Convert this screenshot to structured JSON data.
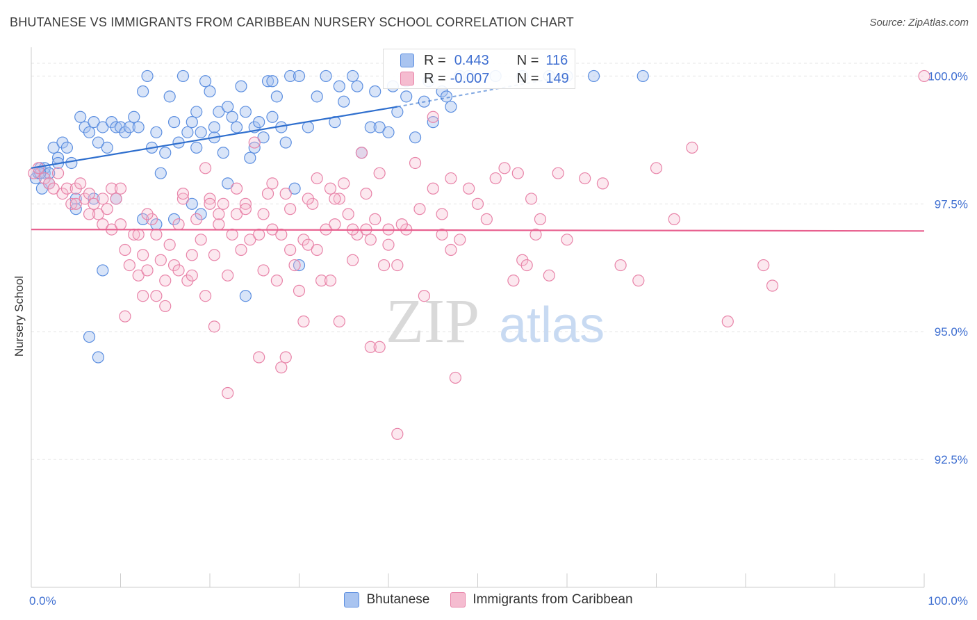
{
  "header": {
    "title": "BHUTANESE VS IMMIGRANTS FROM CARIBBEAN NURSERY SCHOOL CORRELATION CHART",
    "source": "Source: ZipAtlas.com"
  },
  "watermark": {
    "zip": "ZIP",
    "atlas": "atlas"
  },
  "stats": [
    {
      "r_label": "R =",
      "r_value": "0.443",
      "n_label": "N =",
      "n_value": "116"
    },
    {
      "r_label": "R =",
      "r_value": "-0.007",
      "n_label": "N =",
      "n_value": "149"
    }
  ],
  "legend": [
    {
      "label": "Bhutanese"
    },
    {
      "label": "Immigrants from Caribbean"
    }
  ],
  "chart_data": {
    "type": "scatter",
    "title": "BHUTANESE VS IMMIGRANTS FROM CARIBBEAN NURSERY SCHOOL CORRELATION CHART",
    "xlabel": "",
    "ylabel": "Nursery School",
    "xlim": [
      0,
      100
    ],
    "ylim": [
      90,
      100.4
    ],
    "x_tick_labels": [
      "0.0%",
      "100.0%"
    ],
    "y_ticks": [
      92.5,
      95.0,
      97.5,
      100.0
    ],
    "y_tick_labels": [
      "92.5%",
      "95.0%",
      "97.5%",
      "100.0%"
    ],
    "grid": true,
    "legend_position": "bottom",
    "colors": {
      "bhutanese_fill": "#a9c4f0",
      "bhutanese_edge": "#5b8ee0",
      "bhutanese_line": "#2f6fce",
      "caribbean_fill": "#f5bcd0",
      "caribbean_edge": "#e883a8",
      "caribbean_line": "#e8608f",
      "tick_label": "#3f6fd1"
    },
    "series": [
      {
        "name": "Bhutanese",
        "trend": {
          "x": [
            0,
            41
          ],
          "y": [
            98.2,
            99.4
          ]
        },
        "trend_dashed": {
          "x": [
            41,
            60
          ],
          "y": [
            99.4,
            100.0
          ]
        },
        "points": [
          [
            0.5,
            98.0
          ],
          [
            0.8,
            98.1
          ],
          [
            1.0,
            98.2
          ],
          [
            1.2,
            97.8
          ],
          [
            1.5,
            98.1
          ],
          [
            2.0,
            97.9
          ],
          [
            2.5,
            98.6
          ],
          [
            3.0,
            98.4
          ],
          [
            3.5,
            98.7
          ],
          [
            4.0,
            98.6
          ],
          [
            4.5,
            98.3
          ],
          [
            5.0,
            97.6
          ],
          [
            5.5,
            99.2
          ],
          [
            6.0,
            99.0
          ],
          [
            6.5,
            98.9
          ],
          [
            7.0,
            99.1
          ],
          [
            7.5,
            98.7
          ],
          [
            8.0,
            99.0
          ],
          [
            8.5,
            98.6
          ],
          [
            9.0,
            99.1
          ],
          [
            9.5,
            99.0
          ],
          [
            10.0,
            99.0
          ],
          [
            10.5,
            98.9
          ],
          [
            11.0,
            99.0
          ],
          [
            11.5,
            99.2
          ],
          [
            12.0,
            99.0
          ],
          [
            12.5,
            99.7
          ],
          [
            13.0,
            100.0
          ],
          [
            13.5,
            98.6
          ],
          [
            14.0,
            98.9
          ],
          [
            14.5,
            98.1
          ],
          [
            15.0,
            98.5
          ],
          [
            15.5,
            99.6
          ],
          [
            16.0,
            99.1
          ],
          [
            16.5,
            98.7
          ],
          [
            17.0,
            100.0
          ],
          [
            17.5,
            98.9
          ],
          [
            18.0,
            99.1
          ],
          [
            18.5,
            99.3
          ],
          [
            19.0,
            98.9
          ],
          [
            19.5,
            99.9
          ],
          [
            20.0,
            99.7
          ],
          [
            20.5,
            98.8
          ],
          [
            21.0,
            99.3
          ],
          [
            21.5,
            98.5
          ],
          [
            22.0,
            99.4
          ],
          [
            22.5,
            99.2
          ],
          [
            23.0,
            99.0
          ],
          [
            23.5,
            99.8
          ],
          [
            24.0,
            99.3
          ],
          [
            24.5,
            98.4
          ],
          [
            25.0,
            99.0
          ],
          [
            25.5,
            99.1
          ],
          [
            26.0,
            98.8
          ],
          [
            26.5,
            99.9
          ],
          [
            27.0,
            99.2
          ],
          [
            27.5,
            99.6
          ],
          [
            28.0,
            99.0
          ],
          [
            28.5,
            98.7
          ],
          [
            29.0,
            100.0
          ],
          [
            30.0,
            100.0
          ],
          [
            31.0,
            99.0
          ],
          [
            32.0,
            99.6
          ],
          [
            33.0,
            100.0
          ],
          [
            34.0,
            99.1
          ],
          [
            35.0,
            99.5
          ],
          [
            36.0,
            100.0
          ],
          [
            37.0,
            98.5
          ],
          [
            38.0,
            99.0
          ],
          [
            38.5,
            99.7
          ],
          [
            39.0,
            99.0
          ],
          [
            40.0,
            98.9
          ],
          [
            41.0,
            99.3
          ],
          [
            42.0,
            99.6
          ],
          [
            43.0,
            98.8
          ],
          [
            44.0,
            99.5
          ],
          [
            45.0,
            99.1
          ],
          [
            46.0,
            99.7
          ],
          [
            47.0,
            99.4
          ],
          [
            48.0,
            100.0
          ],
          [
            49.0,
            100.0
          ],
          [
            52.0,
            100.0
          ],
          [
            55.0,
            100.0
          ],
          [
            58.0,
            100.0
          ],
          [
            60.0,
            100.0
          ],
          [
            63.0,
            100.0
          ],
          [
            68.5,
            100.0
          ],
          [
            5.0,
            97.4
          ],
          [
            7.0,
            97.6
          ],
          [
            9.5,
            97.6
          ],
          [
            12.5,
            97.2
          ],
          [
            14.0,
            97.1
          ],
          [
            18.0,
            97.5
          ],
          [
            19.0,
            97.3
          ],
          [
            16.0,
            97.2
          ],
          [
            8.0,
            96.2
          ],
          [
            6.5,
            94.9
          ],
          [
            7.5,
            94.5
          ],
          [
            24.0,
            95.7
          ],
          [
            30.0,
            96.3
          ],
          [
            1.5,
            98.2
          ],
          [
            2.0,
            98.1
          ],
          [
            3.0,
            98.3
          ],
          [
            1.0,
            98.1
          ],
          [
            25.0,
            98.6
          ],
          [
            22.0,
            97.9
          ],
          [
            29.5,
            97.8
          ],
          [
            27.0,
            99.9
          ],
          [
            34.5,
            99.8
          ],
          [
            36.5,
            99.8
          ],
          [
            40.5,
            99.8
          ],
          [
            42.0,
            99.9
          ],
          [
            44.5,
            99.9
          ],
          [
            46.5,
            99.6
          ],
          [
            20.5,
            99.0
          ],
          [
            18.5,
            98.6
          ]
        ]
      },
      {
        "name": "Immigrants from Caribbean",
        "trend": {
          "x": [
            0,
            100
          ],
          "y": [
            97.0,
            96.97
          ]
        },
        "points": [
          [
            0.3,
            98.1
          ],
          [
            0.8,
            98.2
          ],
          [
            1.5,
            98.0
          ],
          [
            2.0,
            97.9
          ],
          [
            2.5,
            97.8
          ],
          [
            3.0,
            98.1
          ],
          [
            3.5,
            97.7
          ],
          [
            4.0,
            97.8
          ],
          [
            4.5,
            97.5
          ],
          [
            5.0,
            97.8
          ],
          [
            5.5,
            97.9
          ],
          [
            6.0,
            97.6
          ],
          [
            6.5,
            97.7
          ],
          [
            7.0,
            97.5
          ],
          [
            7.5,
            97.3
          ],
          [
            8.0,
            97.1
          ],
          [
            8.5,
            97.4
          ],
          [
            9.0,
            97.0
          ],
          [
            9.5,
            97.6
          ],
          [
            10.0,
            97.1
          ],
          [
            10.5,
            96.6
          ],
          [
            11.0,
            96.3
          ],
          [
            11.5,
            96.9
          ],
          [
            12.0,
            96.1
          ],
          [
            12.5,
            96.5
          ],
          [
            13.0,
            96.2
          ],
          [
            13.5,
            97.2
          ],
          [
            14.0,
            96.9
          ],
          [
            14.5,
            96.4
          ],
          [
            15.0,
            96.0
          ],
          [
            15.5,
            96.7
          ],
          [
            16.0,
            96.3
          ],
          [
            16.5,
            97.1
          ],
          [
            17.0,
            97.6
          ],
          [
            17.5,
            96.0
          ],
          [
            18.0,
            96.5
          ],
          [
            18.5,
            97.2
          ],
          [
            19.0,
            96.8
          ],
          [
            19.5,
            98.2
          ],
          [
            20.0,
            97.6
          ],
          [
            20.5,
            96.5
          ],
          [
            21.0,
            97.1
          ],
          [
            21.5,
            97.5
          ],
          [
            22.0,
            96.1
          ],
          [
            22.5,
            96.9
          ],
          [
            23.0,
            97.3
          ],
          [
            23.5,
            96.6
          ],
          [
            24.0,
            97.5
          ],
          [
            24.5,
            96.8
          ],
          [
            25.0,
            98.7
          ],
          [
            25.5,
            96.9
          ],
          [
            26.0,
            96.2
          ],
          [
            26.5,
            97.7
          ],
          [
            27.0,
            97.0
          ],
          [
            27.5,
            96.0
          ],
          [
            28.0,
            96.9
          ],
          [
            28.5,
            97.7
          ],
          [
            29.0,
            96.6
          ],
          [
            29.5,
            96.3
          ],
          [
            30.0,
            95.8
          ],
          [
            30.5,
            96.8
          ],
          [
            31.0,
            96.7
          ],
          [
            31.5,
            97.5
          ],
          [
            32.0,
            96.6
          ],
          [
            32.5,
            96.0
          ],
          [
            33.0,
            97.0
          ],
          [
            33.5,
            96.0
          ],
          [
            34.0,
            97.1
          ],
          [
            34.5,
            97.6
          ],
          [
            35.0,
            97.9
          ],
          [
            35.5,
            97.3
          ],
          [
            36.0,
            96.4
          ],
          [
            36.5,
            96.9
          ],
          [
            37.0,
            98.5
          ],
          [
            37.5,
            97.0
          ],
          [
            38.0,
            96.8
          ],
          [
            38.5,
            97.2
          ],
          [
            39.0,
            98.1
          ],
          [
            39.5,
            96.3
          ],
          [
            40.0,
            96.7
          ],
          [
            41.0,
            96.3
          ],
          [
            42.0,
            97.0
          ],
          [
            43.0,
            98.3
          ],
          [
            44.0,
            95.7
          ],
          [
            45.0,
            97.8
          ],
          [
            46.0,
            97.3
          ],
          [
            47.0,
            96.6
          ],
          [
            48.0,
            96.8
          ],
          [
            49.0,
            97.8
          ],
          [
            50.0,
            97.5
          ],
          [
            51.0,
            97.2
          ],
          [
            52.0,
            98.0
          ],
          [
            53.0,
            98.2
          ],
          [
            54.0,
            96.0
          ],
          [
            55.0,
            96.4
          ],
          [
            56.0,
            97.6
          ],
          [
            57.0,
            97.2
          ],
          [
            58.0,
            96.1
          ],
          [
            59.0,
            98.1
          ],
          [
            60.0,
            96.8
          ],
          [
            62.0,
            98.0
          ],
          [
            64.0,
            97.9
          ],
          [
            66.0,
            96.3
          ],
          [
            68.0,
            96.0
          ],
          [
            70.0,
            98.2
          ],
          [
            72.0,
            97.2
          ],
          [
            74.0,
            98.6
          ],
          [
            78.0,
            95.2
          ],
          [
            82.0,
            96.3
          ],
          [
            83.0,
            95.9
          ],
          [
            100.0,
            100.0
          ],
          [
            10.5,
            95.3
          ],
          [
            12.5,
            95.7
          ],
          [
            14.0,
            95.7
          ],
          [
            15.0,
            95.5
          ],
          [
            19.5,
            95.7
          ],
          [
            20.5,
            95.1
          ],
          [
            22.0,
            93.8
          ],
          [
            25.5,
            94.5
          ],
          [
            28.0,
            94.3
          ],
          [
            28.5,
            94.5
          ],
          [
            30.5,
            95.2
          ],
          [
            34.5,
            95.2
          ],
          [
            38.0,
            94.7
          ],
          [
            39.0,
            94.7
          ],
          [
            41.0,
            93.0
          ],
          [
            47.5,
            94.1
          ],
          [
            12.0,
            96.9
          ],
          [
            16.5,
            96.2
          ],
          [
            18.0,
            96.1
          ],
          [
            23.0,
            97.8
          ],
          [
            26.0,
            97.3
          ],
          [
            31.0,
            97.6
          ],
          [
            33.5,
            97.8
          ],
          [
            36.0,
            97.0
          ],
          [
            40.0,
            97.0
          ],
          [
            45.0,
            99.2
          ],
          [
            47.0,
            98.0
          ],
          [
            54.5,
            98.1
          ],
          [
            56.5,
            96.9
          ],
          [
            5.0,
            97.5
          ],
          [
            6.5,
            97.3
          ],
          [
            8.0,
            97.6
          ],
          [
            9.0,
            97.8
          ],
          [
            10.0,
            97.8
          ],
          [
            13.0,
            97.3
          ],
          [
            17.0,
            97.7
          ],
          [
            20.0,
            97.5
          ],
          [
            21.0,
            97.3
          ],
          [
            24.0,
            97.4
          ],
          [
            27.0,
            97.9
          ],
          [
            29.0,
            97.4
          ],
          [
            32.0,
            98.0
          ],
          [
            34.0,
            97.6
          ],
          [
            37.5,
            97.7
          ],
          [
            41.5,
            97.1
          ],
          [
            43.5,
            97.4
          ],
          [
            46.0,
            96.9
          ],
          [
            55.5,
            96.3
          ]
        ]
      }
    ]
  }
}
